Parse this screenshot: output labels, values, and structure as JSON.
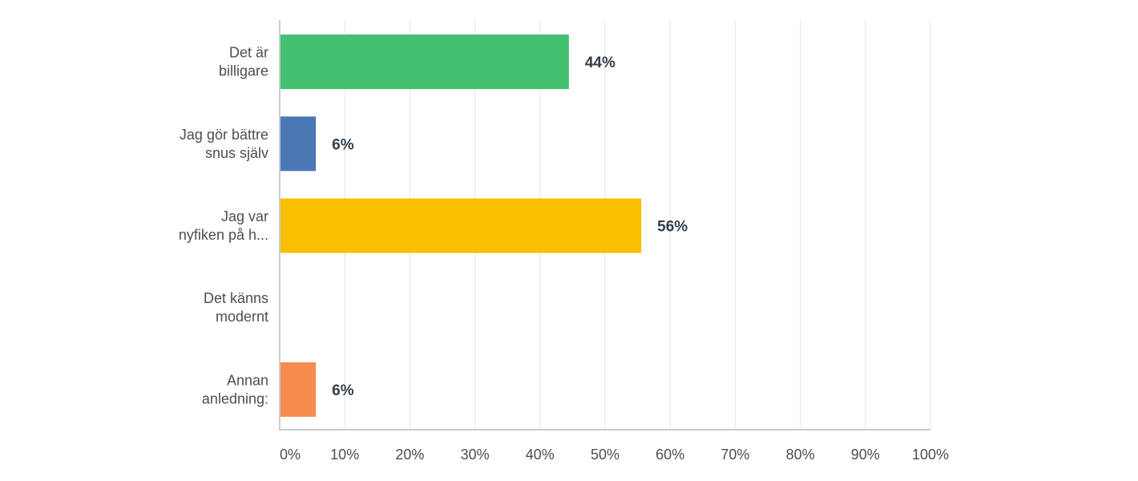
{
  "chart_data": {
    "type": "bar",
    "orientation": "horizontal",
    "categories": [
      [
        "Det är",
        "billigare"
      ],
      [
        "Jag gör bättre",
        "snus själv"
      ],
      [
        "Jag var",
        "nyfiken på h..."
      ],
      [
        "Det känns",
        "modernt"
      ],
      [
        "Annan",
        "anledning:"
      ]
    ],
    "values": [
      44.44,
      5.56,
      55.56,
      0,
      5.56
    ],
    "value_labels": [
      "44%",
      "6%",
      "56%",
      "",
      "6%"
    ],
    "colors": [
      "#43c070",
      "#4a78b5",
      "#f7bf00",
      "#ffffff",
      "#f68c4d"
    ],
    "xlim": [
      0,
      100
    ],
    "x_ticks": [
      0,
      10,
      20,
      30,
      40,
      50,
      60,
      70,
      80,
      90,
      100
    ],
    "x_tick_labels": [
      "0%",
      "10%",
      "20%",
      "30%",
      "40%",
      "50%",
      "60%",
      "70%",
      "80%",
      "90%",
      "100%"
    ],
    "grid": true,
    "title": "",
    "xlabel": "",
    "ylabel": ""
  }
}
